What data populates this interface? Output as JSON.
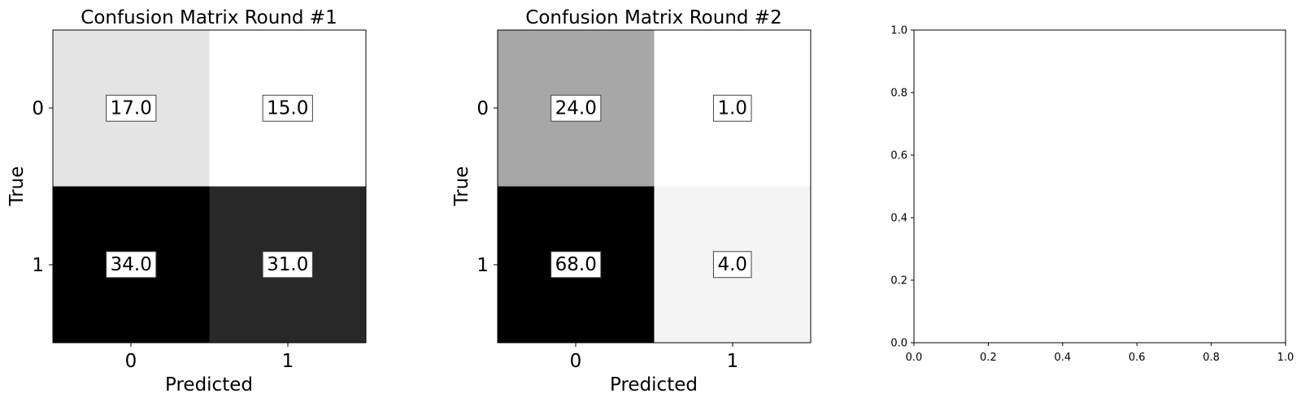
{
  "chart_data": [
    {
      "type": "heatmap",
      "title": "Confusion Matrix Round #1",
      "xlabel": "Predicted",
      "ylabel": "True",
      "x_ticks": [
        "0",
        "1"
      ],
      "y_ticks": [
        "0",
        "1"
      ],
      "matrix": [
        [
          17.0,
          15.0
        ],
        [
          34.0,
          31.0
        ]
      ],
      "cell_labels": [
        [
          "17.0",
          "15.0"
        ],
        [
          "34.0",
          "31.0"
        ]
      ],
      "colormap": "gray_r"
    },
    {
      "type": "heatmap",
      "title": "Confusion Matrix Round #2",
      "xlabel": "Predicted",
      "ylabel": "True",
      "x_ticks": [
        "0",
        "1"
      ],
      "y_ticks": [
        "0",
        "1"
      ],
      "matrix": [
        [
          24.0,
          1.0
        ],
        [
          68.0,
          4.0
        ]
      ],
      "cell_labels": [
        [
          "24.0",
          "1.0"
        ],
        [
          "68.0",
          "4.0"
        ]
      ],
      "colormap": "gray_r"
    },
    {
      "type": "scatter",
      "title": "",
      "xlabel": "",
      "ylabel": "",
      "xlim": [
        0.0,
        1.0
      ],
      "ylim": [
        0.0,
        1.0
      ],
      "x_ticks": [
        "0.0",
        "0.2",
        "0.4",
        "0.6",
        "0.8",
        "1.0"
      ],
      "y_ticks": [
        "0.0",
        "0.2",
        "0.4",
        "0.6",
        "0.8",
        "1.0"
      ],
      "series": []
    }
  ]
}
